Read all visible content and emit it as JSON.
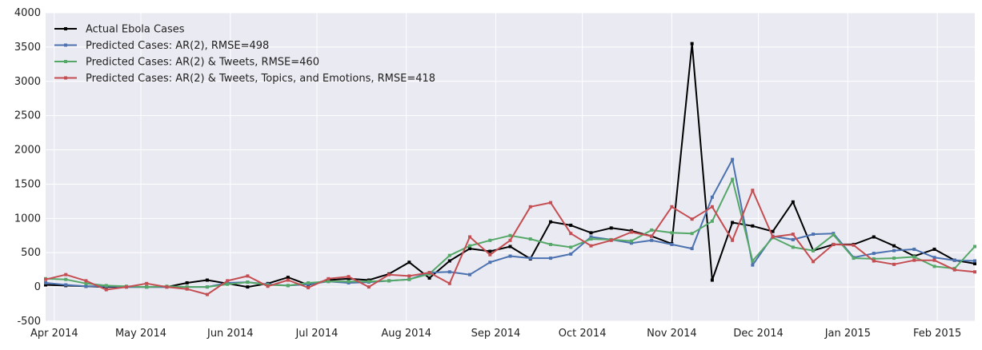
{
  "chart_data": {
    "type": "line",
    "title": "",
    "xlabel": "",
    "ylabel": "",
    "ylim": [
      -500,
      4000
    ],
    "yticks": [
      -500,
      0,
      500,
      1000,
      1500,
      2000,
      2500,
      3000,
      3500,
      4000
    ],
    "xlim": [
      "2014-03-29",
      "2015-02-14"
    ],
    "xticks": [
      {
        "date": "2014-04-01",
        "label": "Apr 2014"
      },
      {
        "date": "2014-05-01",
        "label": "May 2014"
      },
      {
        "date": "2014-06-01",
        "label": "Jun 2014"
      },
      {
        "date": "2014-07-01",
        "label": "Jul 2014"
      },
      {
        "date": "2014-08-01",
        "label": "Aug 2014"
      },
      {
        "date": "2014-09-01",
        "label": "Sep 2014"
      },
      {
        "date": "2014-10-01",
        "label": "Oct 2014"
      },
      {
        "date": "2014-11-01",
        "label": "Nov 2014"
      },
      {
        "date": "2014-12-01",
        "label": "Dec 2014"
      },
      {
        "date": "2015-01-01",
        "label": "Jan 2015"
      },
      {
        "date": "2015-02-01",
        "label": "Feb 2015"
      }
    ],
    "grid": true,
    "legend_position": "top-left",
    "x": [
      "2014-03-29",
      "2014-04-05",
      "2014-04-12",
      "2014-04-19",
      "2014-04-26",
      "2014-05-03",
      "2014-05-10",
      "2014-05-17",
      "2014-05-24",
      "2014-05-31",
      "2014-06-07",
      "2014-06-14",
      "2014-06-21",
      "2014-06-28",
      "2014-07-05",
      "2014-07-12",
      "2014-07-19",
      "2014-07-26",
      "2014-08-02",
      "2014-08-09",
      "2014-08-16",
      "2014-08-23",
      "2014-08-30",
      "2014-09-06",
      "2014-09-13",
      "2014-09-20",
      "2014-09-27",
      "2014-10-04",
      "2014-10-11",
      "2014-10-18",
      "2014-10-25",
      "2014-11-01",
      "2014-11-08",
      "2014-11-15",
      "2014-11-22",
      "2014-11-29",
      "2014-12-06",
      "2014-12-13",
      "2014-12-20",
      "2014-12-27",
      "2015-01-03",
      "2015-01-10",
      "2015-01-17",
      "2015-01-24",
      "2015-01-31",
      "2015-02-07",
      "2015-02-14"
    ],
    "series": [
      {
        "name": "Actual Ebola Cases",
        "color": "#000000",
        "values": [
          30,
          20,
          10,
          0,
          0,
          0,
          0,
          60,
          100,
          50,
          0,
          50,
          140,
          30,
          100,
          120,
          100,
          190,
          360,
          130,
          380,
          560,
          520,
          590,
          410,
          950,
          900,
          790,
          860,
          820,
          740,
          630,
          3550,
          100,
          940,
          890,
          810,
          1240,
          530,
          620,
          620,
          730,
          600,
          450,
          550,
          390,
          340
        ]
      },
      {
        "name": "Predicted Cases: AR(2), RMSE=498",
        "color": "#4c72b0",
        "values": [
          60,
          30,
          10,
          10,
          0,
          0,
          0,
          0,
          0,
          60,
          70,
          40,
          20,
          40,
          80,
          60,
          70,
          90,
          110,
          210,
          220,
          180,
          360,
          450,
          420,
          420,
          480,
          730,
          690,
          640,
          680,
          620,
          560,
          1310,
          1860,
          320,
          740,
          690,
          770,
          780,
          430,
          490,
          530,
          550,
          430,
          390,
          380
        ]
      },
      {
        "name": "Predicted Cases: AR(2) & Tweets, RMSE=460",
        "color": "#55a868",
        "values": [
          120,
          110,
          50,
          20,
          10,
          0,
          10,
          0,
          0,
          40,
          70,
          30,
          20,
          60,
          80,
          80,
          80,
          90,
          110,
          190,
          460,
          600,
          680,
          750,
          700,
          620,
          580,
          700,
          690,
          670,
          830,
          790,
          780,
          960,
          1570,
          380,
          720,
          580,
          530,
          760,
          420,
          410,
          420,
          440,
          300,
          270,
          590
        ]
      },
      {
        "name": "Predicted Cases: AR(2) & Tweets, Topics, and Emotions, RMSE=418",
        "color": "#c44e52",
        "values": [
          110,
          180,
          90,
          -40,
          0,
          50,
          0,
          -30,
          -110,
          90,
          160,
          10,
          100,
          -10,
          120,
          150,
          0,
          180,
          160,
          210,
          50,
          730,
          470,
          680,
          1170,
          1230,
          780,
          600,
          680,
          800,
          740,
          1170,
          990,
          1170,
          680,
          1410,
          730,
          770,
          370,
          620,
          610,
          380,
          330,
          390,
          390,
          250,
          220
        ]
      }
    ]
  }
}
